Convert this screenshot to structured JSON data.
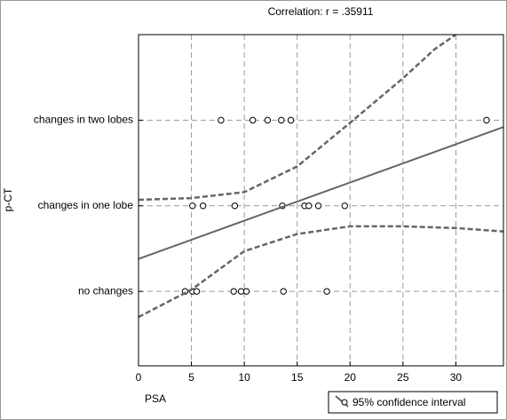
{
  "chart_data": {
    "type": "scatter",
    "title": "Correlation: r =  .35911",
    "x_label": "PSA",
    "y_label": "p-CT",
    "xlim": [
      0,
      34.5
    ],
    "xticks": [
      0,
      5,
      10,
      15,
      20,
      25,
      30
    ],
    "ylim": [
      -0.87,
      3
    ],
    "yticks": [
      {
        "value": 0,
        "label": "no changes"
      },
      {
        "value": 1,
        "label": "changes in one lobe"
      },
      {
        "value": 2,
        "label": "changes in two lobes"
      }
    ],
    "grid": true,
    "legend": "bottom-right",
    "series": [
      {
        "style": "markers",
        "color": "#000000",
        "x": [
          7.8,
          10.8,
          12.2,
          13.5,
          14.4,
          32.9,
          5.1,
          6.1,
          9.1,
          13.6,
          15.7,
          16.1,
          17.0,
          19.5,
          4.4,
          5.1,
          5.5,
          9.0,
          9.7,
          10.2,
          13.7,
          17.8
        ],
        "values": [
          2,
          2,
          2,
          2,
          2,
          2,
          1,
          1,
          1,
          1,
          1,
          1,
          1,
          1,
          0,
          0,
          0,
          0,
          0,
          0,
          0,
          0
        ]
      },
      {
        "style": "line",
        "color": "#666666",
        "x": [
          0,
          34.5
        ],
        "values": [
          0.38,
          1.92
        ]
      },
      {
        "name": "95% confidence interval",
        "style": "dashed",
        "color": "#666666",
        "x": [
          0,
          5,
          10,
          15,
          20,
          25,
          28,
          30
        ],
        "values": [
          1.07,
          1.09,
          1.16,
          1.46,
          1.97,
          2.49,
          2.83,
          3.0
        ]
      },
      {
        "style": "dashed",
        "color": "#666666",
        "x": [
          0,
          5,
          10,
          15,
          20,
          25,
          30,
          34.5
        ],
        "values": [
          -0.3,
          0.02,
          0.47,
          0.67,
          0.76,
          0.76,
          0.74,
          0.7
        ]
      }
    ]
  }
}
